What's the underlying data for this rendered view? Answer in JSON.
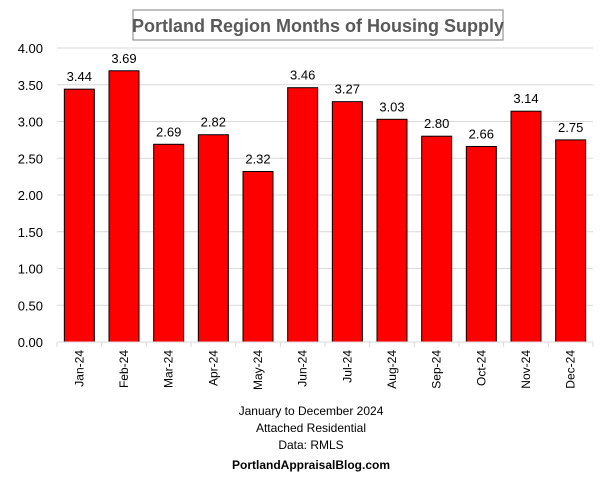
{
  "chart_data": {
    "type": "bar",
    "title": "Portland Region Months of Housing Supply",
    "categories": [
      "Jan-24",
      "Feb-24",
      "Mar-24",
      "Apr-24",
      "May-24",
      "Jun-24",
      "Jul-24",
      "Aug-24",
      "Sep-24",
      "Oct-24",
      "Nov-24",
      "Dec-24"
    ],
    "values": [
      3.44,
      3.69,
      2.69,
      2.82,
      2.32,
      3.46,
      3.27,
      3.03,
      2.8,
      2.66,
      3.14,
      2.75
    ],
    "value_labels": [
      "3.44",
      "3.69",
      "2.69",
      "2.82",
      "2.32",
      "3.46",
      "3.27",
      "3.03",
      "2.80",
      "2.66",
      "3.14",
      "2.75"
    ],
    "ylim": [
      0,
      4
    ],
    "yticks": [
      "0.00",
      "0.50",
      "1.00",
      "1.50",
      "2.00",
      "2.50",
      "3.00",
      "3.50",
      "4.00"
    ],
    "grid": true,
    "xlabel_lines": [
      "January to December 2024",
      "Attached Residential",
      "Data: RMLS",
      "PortlandAppraisalBlog.com"
    ],
    "ylabel": "",
    "colors": {
      "bar": "#ff0000",
      "bar_border": "#000000",
      "grid": "#d9d9d9",
      "title": "#595959"
    }
  }
}
